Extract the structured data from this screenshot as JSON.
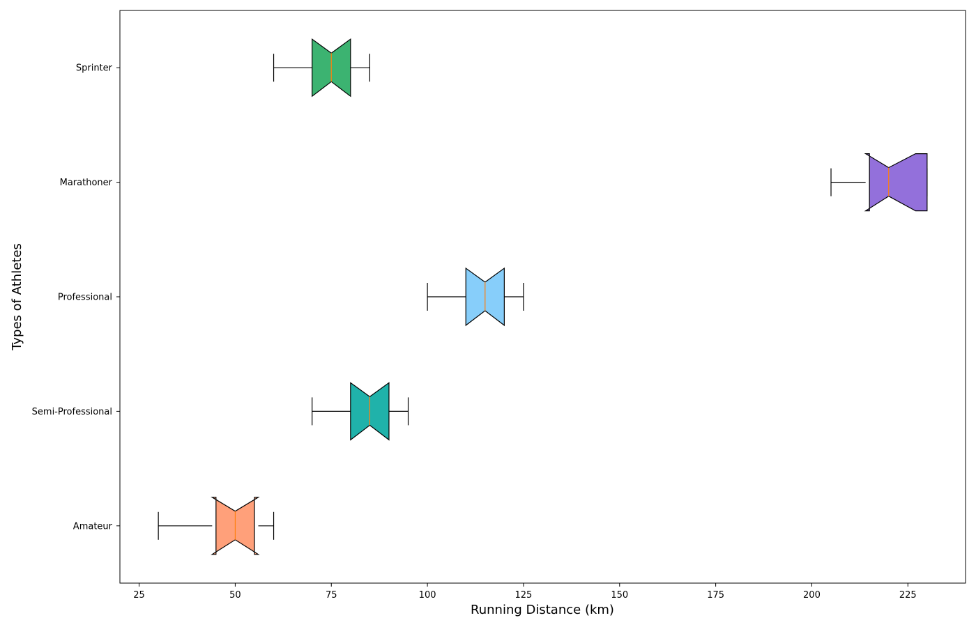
{
  "chart_data": {
    "type": "boxplot",
    "orientation": "horizontal",
    "notched": true,
    "title": "",
    "xlabel": "Running Distance (km)",
    "ylabel": "Types of Athletes",
    "xlim": [
      20,
      240
    ],
    "xticks": [
      25,
      50,
      75,
      100,
      125,
      150,
      175,
      200,
      225
    ],
    "categories": [
      "Amateur",
      "Semi-Professional",
      "Professional",
      "Marathoner",
      "Sprinter"
    ],
    "boxes": [
      {
        "category": "Amateur",
        "whisker_low": 30,
        "q1": 45,
        "median": 50,
        "q3": 55,
        "whisker_high": 60,
        "notch_low": 44,
        "notch_high": 56,
        "color": "#FFA07A"
      },
      {
        "category": "Semi-Professional",
        "whisker_low": 70,
        "q1": 80,
        "median": 85,
        "q3": 90,
        "whisker_high": 95,
        "notch_low": 80,
        "notch_high": 90,
        "color": "#20B2AA"
      },
      {
        "category": "Professional",
        "whisker_low": 100,
        "q1": 110,
        "median": 115,
        "q3": 120,
        "whisker_high": 125,
        "notch_low": 110,
        "notch_high": 120,
        "color": "#87CEFA"
      },
      {
        "category": "Marathoner",
        "whisker_low": 205,
        "q1": 215,
        "median": 220,
        "q3": 230,
        "whisker_high": 230,
        "notch_low": 214,
        "notch_high": 227,
        "color": "#9370DB"
      },
      {
        "category": "Sprinter",
        "whisker_low": 60,
        "q1": 70,
        "median": 75,
        "q3": 80,
        "whisker_high": 85,
        "notch_low": 70,
        "notch_high": 80,
        "color": "#3CB371"
      }
    ],
    "median_color": "#FF7F0E",
    "grid": false,
    "legend": "none"
  }
}
